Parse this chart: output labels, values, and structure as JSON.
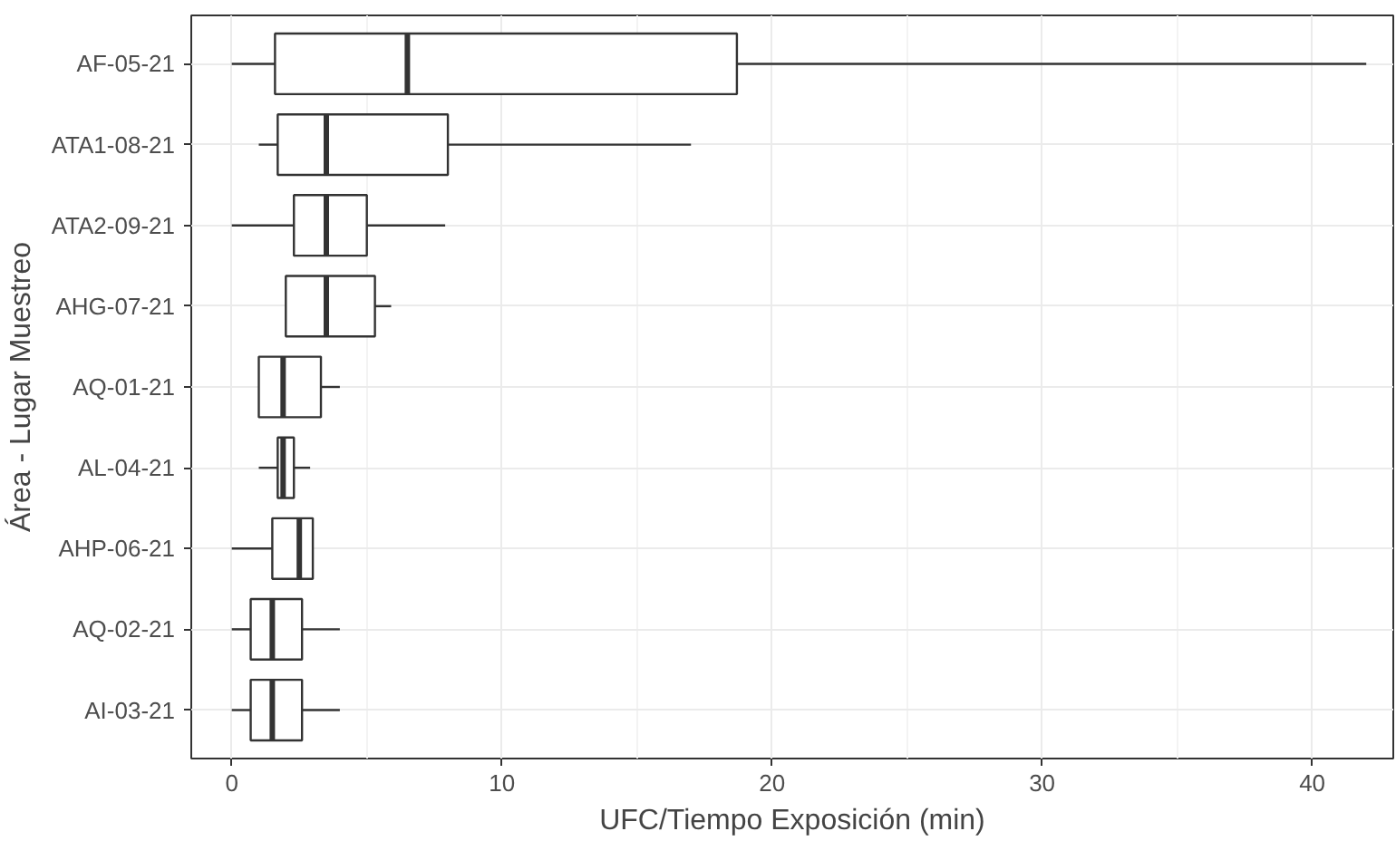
{
  "chart_data": {
    "type": "box",
    "orientation": "horizontal",
    "xlabel": "UFC/Tiempo Exposición (min)",
    "ylabel": "Área - Lugar Muestreo",
    "categories": [
      "AF-05-21",
      "ATA1-08-21",
      "ATA2-09-21",
      "AHG-07-21",
      "AQ-01-21",
      "AL-04-21",
      "AHP-06-21",
      "AQ-02-21",
      "AI-03-21"
    ],
    "boxes": [
      {
        "low": 0,
        "q1": 1.6,
        "median": 6.5,
        "q3": 18.7,
        "high": 42
      },
      {
        "low": 1.0,
        "q1": 1.7,
        "median": 3.5,
        "q3": 8.0,
        "high": 17.0
      },
      {
        "low": 0,
        "q1": 2.3,
        "median": 3.5,
        "q3": 5.0,
        "high": 7.9
      },
      {
        "low": 2.0,
        "q1": 2.0,
        "median": 3.5,
        "q3": 5.3,
        "high": 5.9
      },
      {
        "low": 1.0,
        "q1": 1.0,
        "median": 1.9,
        "q3": 3.3,
        "high": 4.0
      },
      {
        "low": 1.0,
        "q1": 1.7,
        "median": 1.9,
        "q3": 2.3,
        "high": 2.9
      },
      {
        "low": 0,
        "q1": 1.5,
        "median": 2.5,
        "q3": 3.0,
        "high": 3.0
      },
      {
        "low": 0,
        "q1": 0.7,
        "median": 1.5,
        "q3": 2.6,
        "high": 4.0
      },
      {
        "low": 0,
        "q1": 0.7,
        "median": 1.5,
        "q3": 2.6,
        "high": 4.0
      }
    ],
    "xlim": [
      -1.5,
      43
    ],
    "xticks": [
      0,
      10,
      20,
      30,
      40
    ],
    "grid": true
  }
}
